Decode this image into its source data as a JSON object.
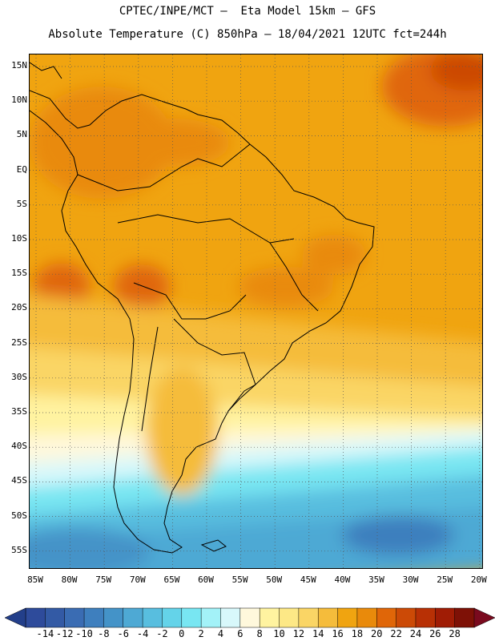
{
  "title_line1": "CPTEC/INPE/MCT –  Eta Model 15km – GFS",
  "title_line2": "Absolute Temperature (C) 850hPa – 18/04/2021 12UTC fct=244h",
  "lat_labels": [
    "15N",
    "10N",
    "5N",
    "EQ",
    "5S",
    "10S",
    "15S",
    "20S",
    "25S",
    "30S",
    "35S",
    "40S",
    "45S",
    "50S",
    "55S"
  ],
  "lon_labels": [
    "85W",
    "80W",
    "75W",
    "70W",
    "65W",
    "60W",
    "55W",
    "50W",
    "45W",
    "40W",
    "35W",
    "30W",
    "25W",
    "20W"
  ],
  "colorbar": {
    "labels": [
      "-14",
      "-12",
      "-10",
      "-8",
      "-6",
      "-4",
      "-2",
      "0",
      "2",
      "4",
      "6",
      "8",
      "10",
      "12",
      "14",
      "16",
      "18",
      "20",
      "22",
      "24",
      "26",
      "28"
    ],
    "colors": [
      "#2e4b9b",
      "#335aa5",
      "#3a6cb3",
      "#3e7fbe",
      "#4493c8",
      "#4ea9d4",
      "#58bedf",
      "#64d3e9",
      "#78e6f2",
      "#a3f2f8",
      "#d8f8fb",
      "#fff8dc",
      "#fff3a0",
      "#fde886",
      "#fad565",
      "#f5bc3b",
      "#f0a410",
      "#e98a0b",
      "#e06608",
      "#cc4a06",
      "#b83005",
      "#a01c05",
      "#7e1106"
    ],
    "under_color": "#233f8a",
    "over_color": "#7a0a1e"
  }
}
